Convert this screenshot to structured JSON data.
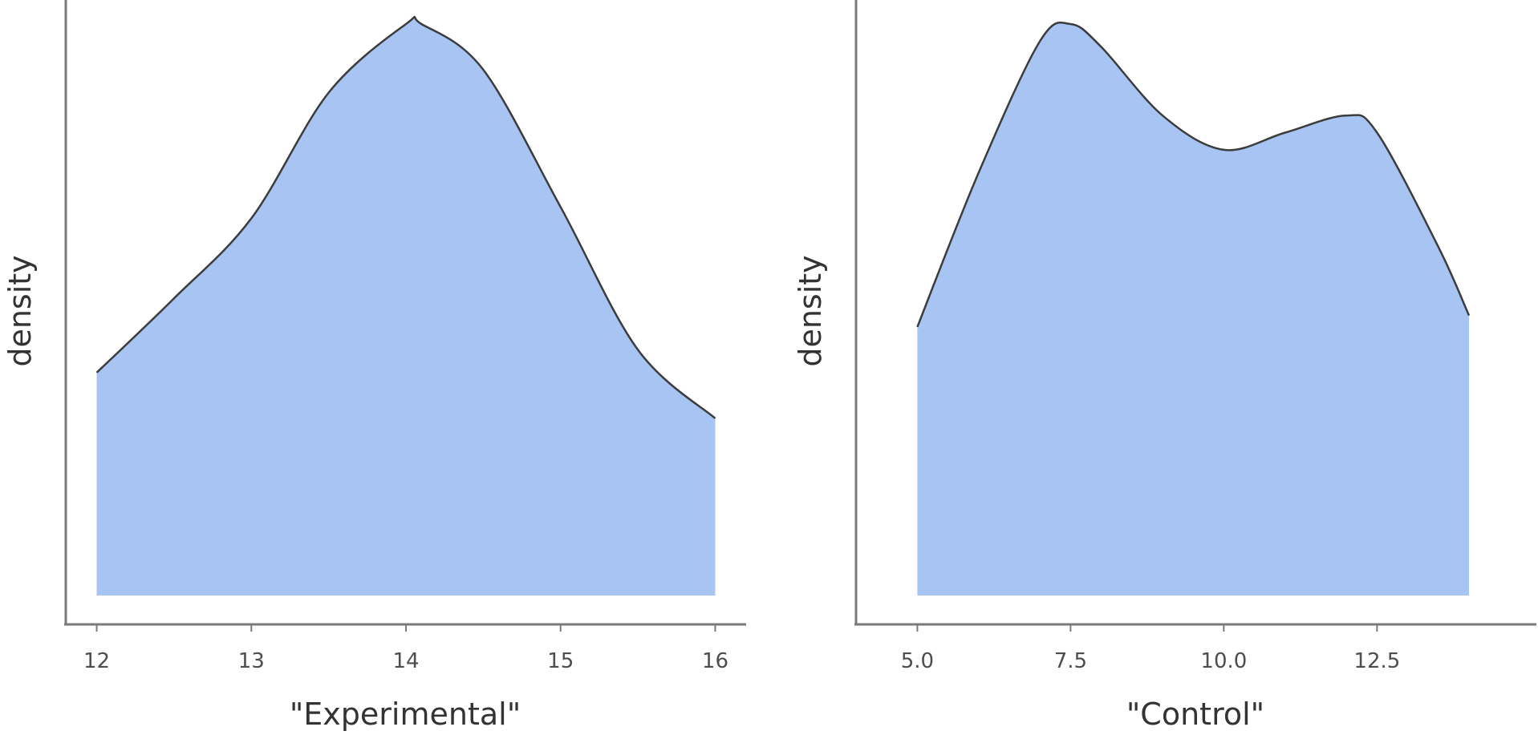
{
  "colors": {
    "fill": "#a7c4f2",
    "line": "#3c3c3c",
    "axis": "#7a7a7a"
  },
  "chart_data": [
    {
      "type": "area",
      "xlabel": "\"Experimental\"",
      "ylabel": "density",
      "xlim": [
        11.8,
        16.2
      ],
      "ylim": [
        0,
        1
      ],
      "xticks": [
        12,
        13,
        14,
        15,
        16
      ],
      "tick_labels": [
        "12",
        "13",
        "14",
        "15",
        "16"
      ],
      "grid": false,
      "x": [
        12.0,
        12.5,
        13.0,
        13.5,
        14.0,
        14.1,
        14.5,
        15.0,
        15.5,
        16.0
      ],
      "y": [
        0.39,
        0.52,
        0.66,
        0.88,
        1.0,
        1.0,
        0.92,
        0.68,
        0.43,
        0.31
      ]
    },
    {
      "type": "area",
      "xlabel": "\"Control\"",
      "ylabel": "density",
      "xlim": [
        4.0,
        15.1
      ],
      "ylim": [
        0,
        1
      ],
      "xticks": [
        5.0,
        7.5,
        10.0,
        12.5
      ],
      "tick_labels": [
        "5.0",
        "7.5",
        "10.0",
        "12.5"
      ],
      "grid": false,
      "x": [
        5.0,
        6.0,
        7.0,
        7.5,
        8.0,
        9.0,
        10.0,
        11.0,
        12.0,
        12.5,
        13.5,
        14.0
      ],
      "y": [
        0.47,
        0.74,
        0.97,
        1.0,
        0.96,
        0.84,
        0.78,
        0.81,
        0.84,
        0.81,
        0.61,
        0.49
      ]
    }
  ]
}
